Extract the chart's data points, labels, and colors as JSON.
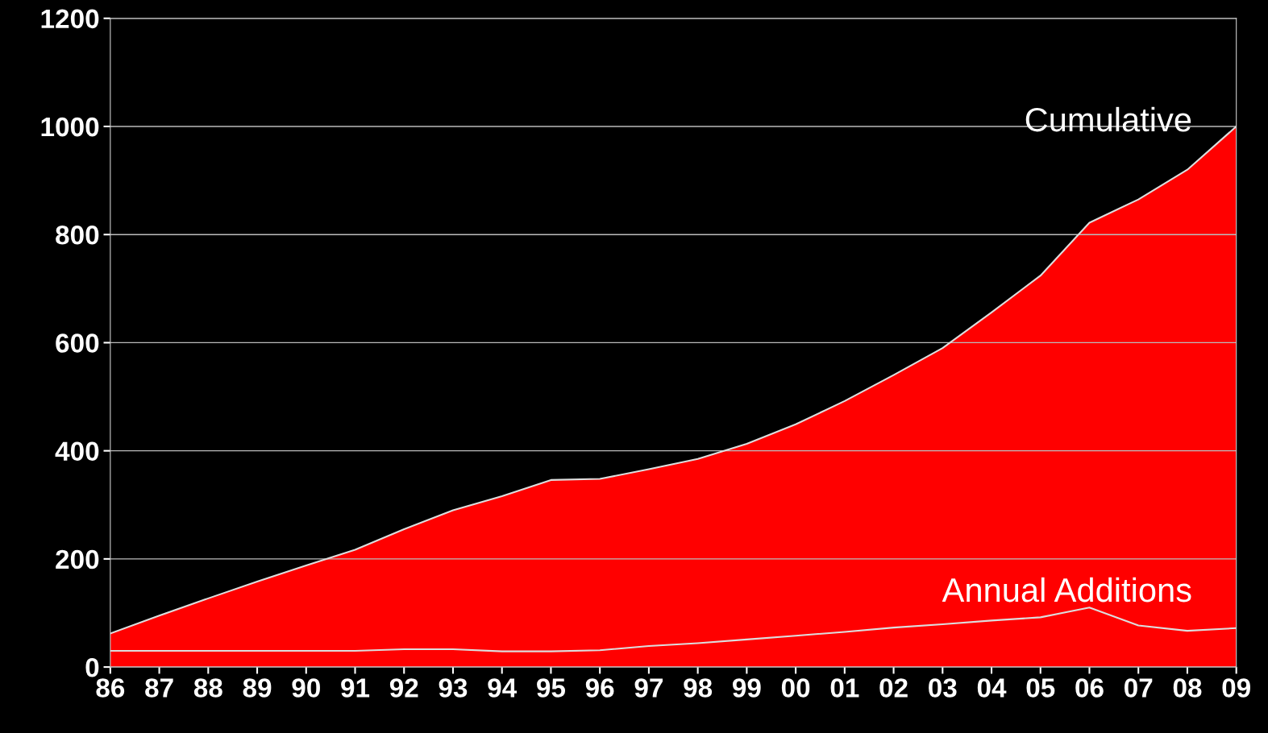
{
  "chart_data": {
    "type": "area",
    "categories": [
      "86",
      "87",
      "88",
      "89",
      "90",
      "91",
      "92",
      "93",
      "94",
      "95",
      "96",
      "97",
      "98",
      "99",
      "00",
      "01",
      "02",
      "03",
      "04",
      "05",
      "06",
      "07",
      "08",
      "09"
    ],
    "series": [
      {
        "name": "Cumulative",
        "color": "#ff0000",
        "values": [
          62,
          95,
          127,
          158,
          188,
          217,
          255,
          290,
          316,
          346,
          348,
          366,
          385,
          413,
          449,
          492,
          540,
          590,
          656,
          724,
          822,
          865,
          920,
          1000
        ]
      },
      {
        "name": "Annual Additions",
        "type": "line",
        "color": "#dddddd",
        "values": [
          30,
          30,
          30,
          30,
          30,
          30,
          33,
          33,
          29,
          29,
          31,
          39,
          44,
          51,
          58,
          65,
          73,
          79,
          86,
          92,
          110,
          77,
          67,
          72
        ]
      }
    ],
    "ylim": [
      0,
      1200
    ],
    "yticks": [
      0,
      200,
      400,
      600,
      800,
      1000,
      1200
    ],
    "grid": "y",
    "legend": false
  }
}
